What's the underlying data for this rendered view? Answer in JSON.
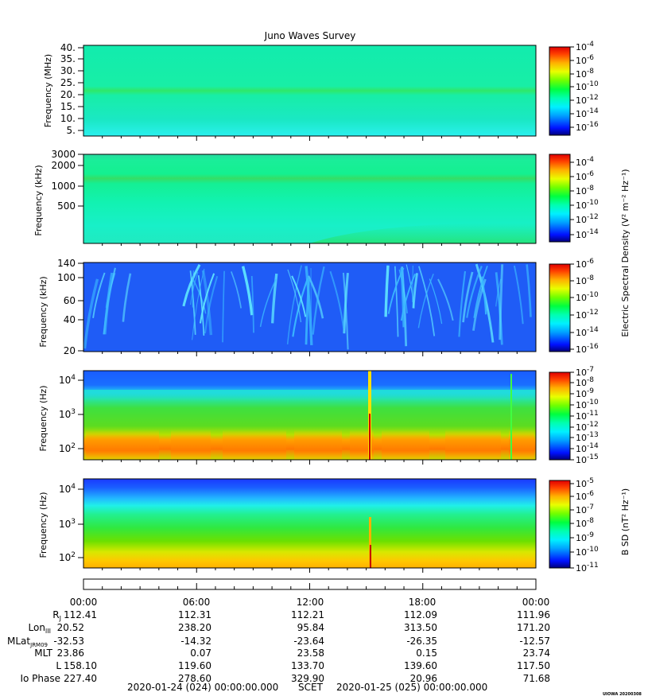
{
  "chart_data": {
    "type": "heatmap",
    "title": "Juno Waves Survey",
    "panels": [
      {
        "ylabel": "Frequency (MHz)",
        "yticks": [
          "5.",
          "10.",
          "15.",
          "20.",
          "25.",
          "30.",
          "35.",
          "40."
        ],
        "ytick_values": [
          5,
          10,
          15,
          20,
          25,
          30,
          35,
          40
        ],
        "ylim": [
          3,
          41
        ],
        "yscale": "linear",
        "colorbar_ticks": [
          "10^-16",
          "10^-14",
          "10^-12",
          "10^-10",
          "10^-8",
          "10^-6",
          "10^-4"
        ],
        "colorbar_range": [
          -17,
          -3.5
        ]
      },
      {
        "ylabel": "Frequency (kHz)",
        "yticks": [
          "500",
          "1000",
          "2000",
          "3000"
        ],
        "ytick_values": [
          500,
          1000,
          2000,
          3000
        ],
        "ylim": [
          150,
          3100
        ],
        "yscale": "log",
        "colorbar_ticks": [
          "10^-14",
          "10^-12",
          "10^-10",
          "10^-8",
          "10^-6",
          "10^-4"
        ],
        "colorbar_range": [
          -15,
          -3
        ]
      },
      {
        "ylabel": "Frequency (kHz)",
        "yticks": [
          "20",
          "40",
          "60",
          "100",
          "140"
        ],
        "ytick_values": [
          20,
          40,
          60,
          100,
          140
        ],
        "ylim": [
          20,
          140
        ],
        "yscale": "log",
        "colorbar_ticks": [
          "10^-16",
          "10^-14",
          "10^-12",
          "10^-10",
          "10^-8",
          "10^-6"
        ],
        "colorbar_range": [
          -16,
          -6
        ]
      },
      {
        "ylabel": "Frequency (Hz)",
        "yticks": [
          "10^2",
          "10^3",
          "10^4"
        ],
        "ytick_values": [
          100,
          1000,
          10000
        ],
        "ylim": [
          50,
          20000
        ],
        "yscale": "log",
        "colorbar_ticks": [
          "10^-15",
          "10^-14",
          "10^-13",
          "10^-12",
          "10^-11",
          "10^-10",
          "10^-9",
          "10^-8",
          "10^-7"
        ],
        "colorbar_range": [
          -15,
          -7
        ]
      },
      {
        "ylabel": "Frequency (Hz)",
        "yticks": [
          "10^2",
          "10^3",
          "10^4"
        ],
        "ytick_values": [
          100,
          1000,
          10000
        ],
        "ylim": [
          50,
          20000
        ],
        "yscale": "log",
        "colorbar_ticks": [
          "10^-11",
          "10^-10",
          "10^-9",
          "10^-8",
          "10^-7",
          "10^-6",
          "10^-5"
        ],
        "colorbar_range": [
          -11,
          -4.5
        ]
      }
    ],
    "colorbar_labels": {
      "electric": "Electric Spectral Density (V² m⁻² Hz⁻¹)",
      "magnetic": "B SD (nT² Hz⁻¹)"
    },
    "x_ticks": [
      "00:00",
      "06:00",
      "12:00",
      "18:00",
      "00:00"
    ],
    "x_range_hours": [
      0,
      24
    ],
    "ephemeris": [
      {
        "label": "R",
        "sub": "J",
        "values": [
          "112.41",
          "112.31",
          "112.21",
          "112.09",
          "111.96"
        ]
      },
      {
        "label": "Lon",
        "sub": "III",
        "values": [
          "20.52",
          "238.20",
          "95.84",
          "313.50",
          "171.20"
        ]
      },
      {
        "label": "MLat",
        "sub": "JRM09",
        "values": [
          "-32.53",
          "-14.32",
          "-23.64",
          "-26.35",
          "-12.57"
        ]
      },
      {
        "label": "MLT",
        "sub": "",
        "values": [
          "23.86",
          "0.07",
          "23.58",
          "0.15",
          "23.74"
        ]
      },
      {
        "label": "L",
        "sub": "",
        "values": [
          "158.10",
          "119.60",
          "133.70",
          "139.60",
          "117.50"
        ]
      },
      {
        "label": "Io Phase",
        "sub": "",
        "values": [
          "227.40",
          "278.60",
          "329.90",
          "20.96",
          "71.68"
        ]
      }
    ],
    "time_start": "2020-01-24 (024) 00:00:00.000",
    "time_mid": "SCET",
    "time_end": "2020-01-25 (025) 00:00:00.000",
    "stamp": "UIOWA 20200308"
  }
}
